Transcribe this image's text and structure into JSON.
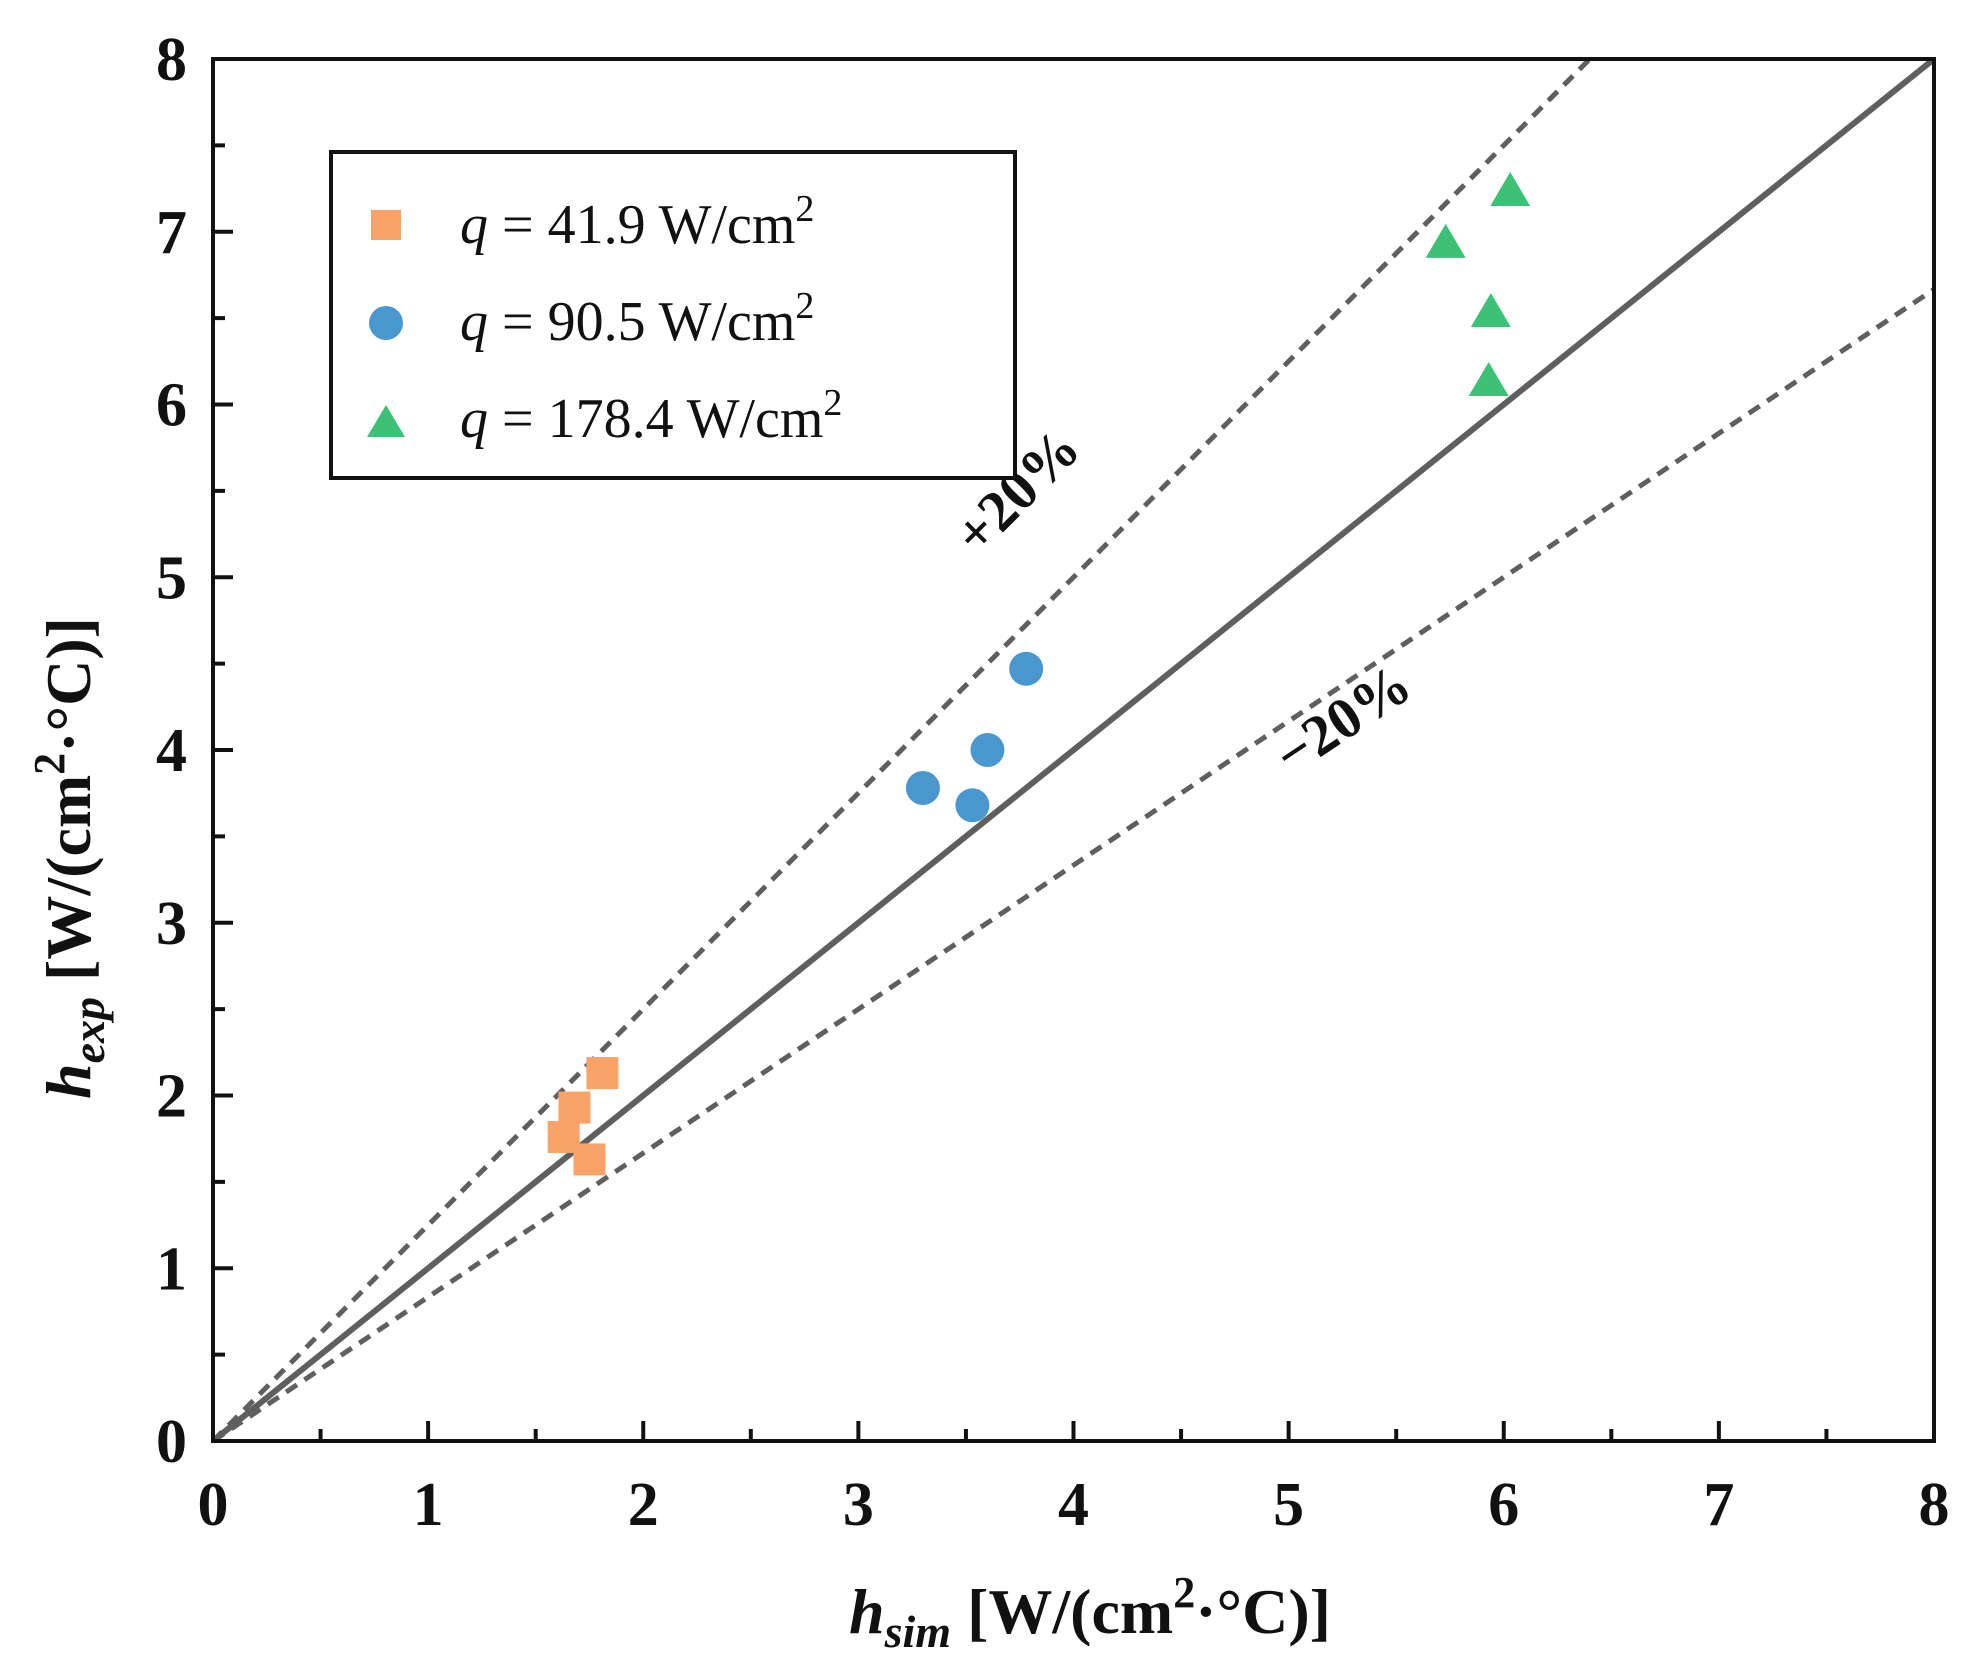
{
  "chart_data": {
    "type": "scatter",
    "title": "",
    "xlabel": {
      "symbol": "h",
      "subscript": "sim",
      "units_before": " [W/(cm",
      "units_sup": "2",
      "units_after": "·°C)]"
    },
    "ylabel": {
      "symbol": "h",
      "subscript": "exp",
      "units_before": " [W/(cm",
      "units_sup": "2",
      "units_after": "·°C)]"
    },
    "xlim": [
      0,
      8
    ],
    "ylim": [
      0,
      8
    ],
    "xticks": [
      "0",
      "1",
      "2",
      "3",
      "4",
      "5",
      "6",
      "7",
      "8"
    ],
    "yticks": [
      "0",
      "1",
      "2",
      "3",
      "4",
      "5",
      "6",
      "7",
      "8"
    ],
    "grid": false,
    "legend_position": "top-left",
    "series": [
      {
        "name": "q = 41.9 W/cm2",
        "legend": {
          "var": "q",
          "text": " = 41.9 W/cm",
          "sup": "2"
        },
        "marker": "square",
        "color": "#F9A36B",
        "x": [
          1.63,
          1.68,
          1.75,
          1.81
        ],
        "y": [
          1.76,
          1.93,
          1.63,
          2.13
        ]
      },
      {
        "name": "q = 90.5 W/cm2",
        "legend": {
          "var": "q",
          "text": " = 90.5 W/cm",
          "sup": "2"
        },
        "marker": "circle",
        "color": "#4A97CF",
        "x": [
          3.3,
          3.53,
          3.6,
          3.78
        ],
        "y": [
          3.78,
          3.68,
          4.0,
          4.47
        ]
      },
      {
        "name": "q = 178.4 W/cm2",
        "legend": {
          "var": "q",
          "text": " = 178.4 W/cm",
          "sup": "2"
        },
        "marker": "triangle",
        "color": "#3DC177",
        "x": [
          5.73,
          5.93,
          5.94,
          6.03
        ],
        "y": [
          6.93,
          6.13,
          6.53,
          7.23
        ]
      }
    ],
    "reference_lines": [
      {
        "name": "parity",
        "slope": 1.0,
        "style": "solid"
      },
      {
        "name": "plus-20",
        "slope": 1.25,
        "style": "dashed"
      },
      {
        "name": "minus-20",
        "slope": 0.8333,
        "style": "dashed"
      }
    ],
    "annotations": [
      {
        "text": "+20%",
        "near_x": 3.8,
        "near_y": 5.5
      },
      {
        "text": "−20%",
        "near_x": 5.3,
        "near_y": 4.2
      }
    ],
    "colors": {
      "axis": "#111111",
      "reference": "#5f5f5f"
    }
  }
}
